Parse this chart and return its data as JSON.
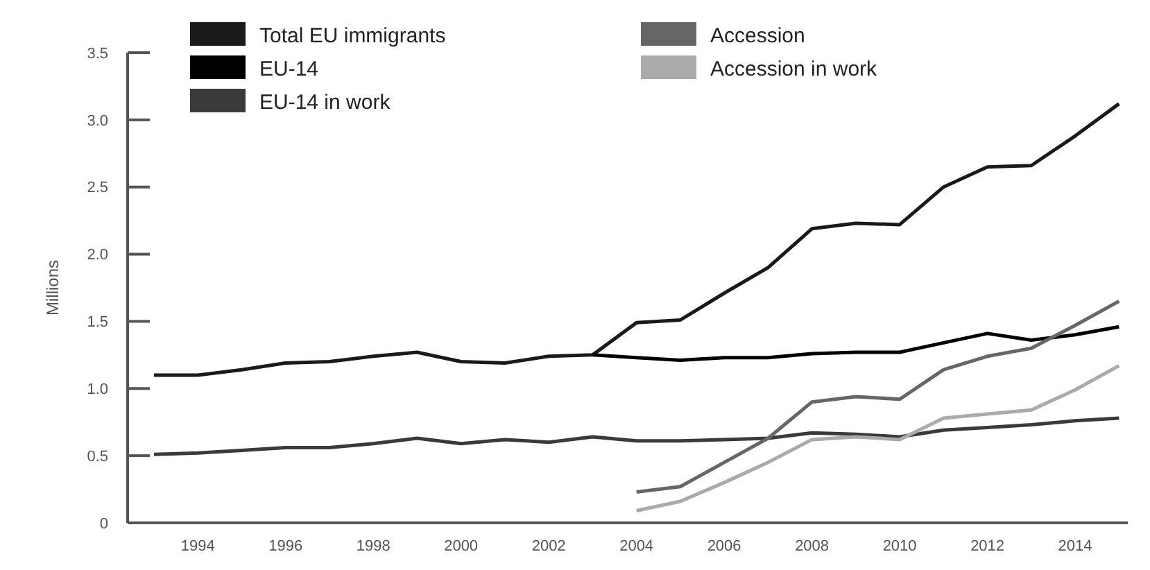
{
  "chart_data": {
    "type": "line",
    "ylabel": "Millions",
    "x": [
      1993,
      1994,
      1995,
      1996,
      1997,
      1998,
      1999,
      2000,
      2001,
      2002,
      2003,
      2004,
      2005,
      2006,
      2007,
      2008,
      2009,
      2010,
      2011,
      2012,
      2013,
      2014,
      2015
    ],
    "xlim": [
      1992.4,
      2015.2
    ],
    "xticks": [
      1994,
      1996,
      1998,
      2000,
      2002,
      2004,
      2006,
      2008,
      2010,
      2012,
      2014
    ],
    "ylim": [
      0,
      3.5
    ],
    "yticks": [
      0,
      0.5,
      {
        "value": 1,
        "label": "1.0"
      },
      1.5,
      {
        "value": 2,
        "label": "2.0"
      },
      2.5,
      {
        "value": 3,
        "label": "3.0"
      },
      3.5
    ],
    "legend": "top left",
    "grid": false,
    "series": [
      {
        "name": "Total EU immigrants",
        "color": "#1a1a1a",
        "values": [
          1.1,
          1.1,
          1.14,
          1.19,
          1.2,
          1.24,
          1.27,
          1.2,
          1.19,
          1.24,
          1.25,
          1.49,
          1.51,
          1.71,
          1.9,
          2.19,
          2.23,
          2.22,
          2.5,
          2.65,
          2.66,
          2.88,
          3.12
        ]
      },
      {
        "name": "EU-14",
        "color": "#000000",
        "values": [
          null,
          null,
          null,
          null,
          null,
          null,
          null,
          null,
          null,
          null,
          1.25,
          1.23,
          1.21,
          1.23,
          1.23,
          1.26,
          1.27,
          1.27,
          1.34,
          1.41,
          1.36,
          1.4,
          1.46
        ]
      },
      {
        "name": "EU-14 in work",
        "color": "#3a3a3a",
        "values": [
          0.51,
          0.52,
          0.54,
          0.56,
          0.56,
          0.59,
          0.63,
          0.59,
          0.62,
          0.6,
          0.64,
          0.61,
          0.61,
          0.62,
          0.63,
          0.67,
          0.66,
          0.64,
          0.69,
          0.71,
          0.73,
          0.76,
          0.78
        ]
      },
      {
        "name": "Accession",
        "color": "#666666",
        "values": [
          null,
          null,
          null,
          null,
          null,
          null,
          null,
          null,
          null,
          null,
          null,
          0.23,
          0.27,
          0.45,
          0.63,
          0.9,
          0.94,
          0.92,
          1.14,
          1.24,
          1.3,
          1.47,
          1.65
        ]
      },
      {
        "name": "Accession in work",
        "color": "#aaaaaa",
        "values": [
          null,
          null,
          null,
          null,
          null,
          null,
          null,
          null,
          null,
          null,
          null,
          0.09,
          0.16,
          0.3,
          0.45,
          0.62,
          0.64,
          0.62,
          0.78,
          0.81,
          0.84,
          0.99,
          1.17
        ]
      }
    ]
  }
}
